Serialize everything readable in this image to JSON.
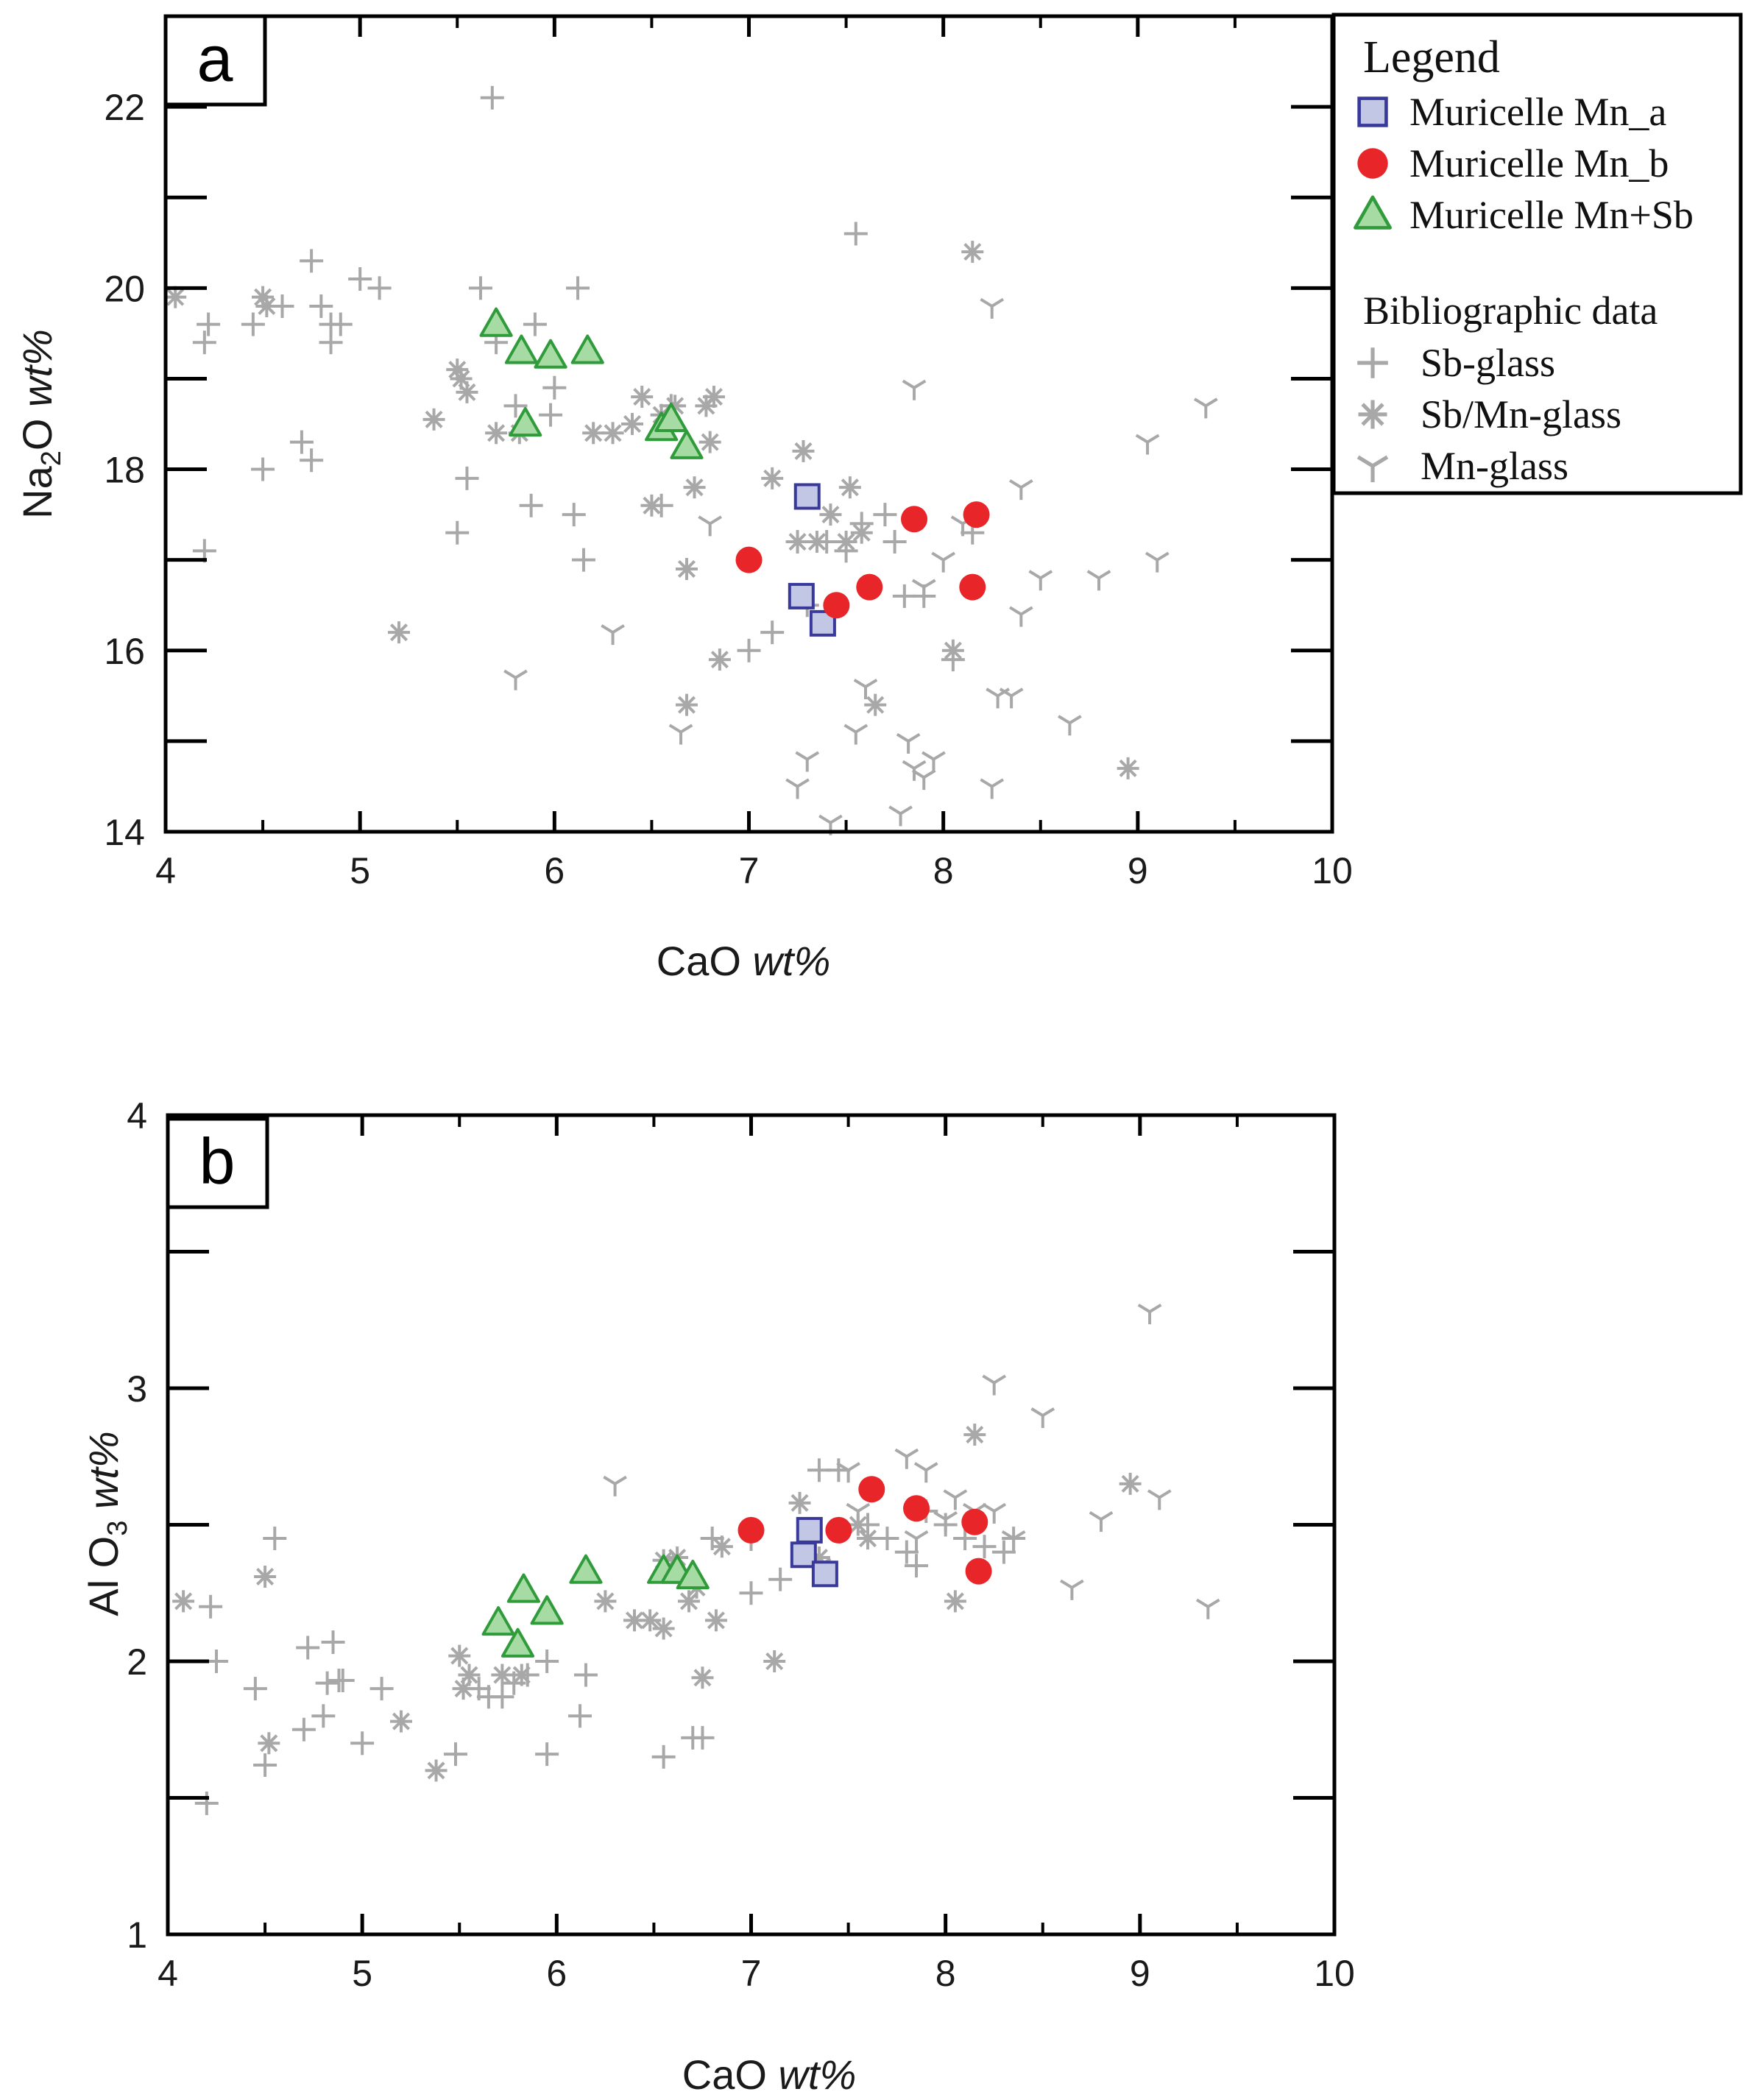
{
  "colors": {
    "mn_a_fill": "#c3c7e6",
    "mn_a_stroke": "#39399b",
    "mn_b_fill": "#e8262a",
    "mn_sb_fill": "#a6dba3",
    "mn_sb_stroke": "#2f9b3a",
    "biblio": "#a8a8a8"
  },
  "legend": {
    "title": "Legend",
    "entries": [
      {
        "key": "mn_a",
        "label": "Muricelle Mn_a",
        "marker": "square"
      },
      {
        "key": "mn_b",
        "label": "Muricelle Mn_b",
        "marker": "circle"
      },
      {
        "key": "mn_sb",
        "label": "Muricelle Mn+Sb",
        "marker": "triangle"
      }
    ],
    "bib_title": "Bibliographic data",
    "bib_entries": [
      {
        "key": "sb",
        "label": "Sb-glass",
        "marker": "plus"
      },
      {
        "key": "sbmn",
        "label": "Sb/Mn-glass",
        "marker": "asterisk"
      },
      {
        "key": "mn",
        "label": "Mn-glass",
        "marker": "y"
      }
    ]
  },
  "chart_data": [
    {
      "type": "scatter",
      "panel": "a",
      "xlabel_main": "CaO ",
      "xlabel_unit": "wt%",
      "ylabel_main": "Na",
      "ylabel_sub": "2",
      "ylabel_rest": "O ",
      "ylabel_unit": "wt%",
      "xlim": [
        4,
        10
      ],
      "ylim": [
        14,
        23
      ],
      "xticks": [
        "4",
        "5",
        "6",
        "7",
        "8",
        "9",
        "10"
      ],
      "xtick_values": [
        4,
        5,
        6,
        7,
        8,
        9,
        10
      ],
      "yticks": [
        "14",
        "16",
        "18",
        "20",
        "22"
      ],
      "ytick_values": [
        14,
        16,
        18,
        20,
        22
      ],
      "y_minor": [
        15,
        17,
        19,
        21
      ],
      "series": [
        {
          "key": "sb",
          "points": [
            [
              4.2,
              17.1
            ],
            [
              4.2,
              19.4
            ],
            [
              4.22,
              19.6
            ],
            [
              4.45,
              19.6
            ],
            [
              4.5,
              18.0
            ],
            [
              4.6,
              19.8
            ],
            [
              4.7,
              18.3
            ],
            [
              4.75,
              18.1
            ],
            [
              4.75,
              20.3
            ],
            [
              4.8,
              19.8
            ],
            [
              4.85,
              19.6
            ],
            [
              4.85,
              19.4
            ],
            [
              4.9,
              19.6
            ],
            [
              5.0,
              20.1
            ],
            [
              5.1,
              20.0
            ],
            [
              5.5,
              17.3
            ],
            [
              5.55,
              17.9
            ],
            [
              5.62,
              20.0
            ],
            [
              5.7,
              19.4
            ],
            [
              5.8,
              18.7
            ],
            [
              5.88,
              17.6
            ],
            [
              5.9,
              19.6
            ],
            [
              5.98,
              18.6
            ],
            [
              6.0,
              18.9
            ],
            [
              6.1,
              17.5
            ],
            [
              6.12,
              20.0
            ],
            [
              6.15,
              17.0
            ],
            [
              6.55,
              17.6
            ],
            [
              6.6,
              18.7
            ],
            [
              7.0,
              16.0
            ],
            [
              7.12,
              16.2
            ],
            [
              7.25,
              17.2
            ],
            [
              7.3,
              16.5
            ],
            [
              7.4,
              17.2
            ],
            [
              7.5,
              17.1
            ],
            [
              7.55,
              20.6
            ],
            [
              7.7,
              17.5
            ],
            [
              7.8,
              16.6
            ],
            [
              7.9,
              16.6
            ],
            [
              7.75,
              17.2
            ],
            [
              7.58,
              17.4
            ],
            [
              8.05,
              15.9
            ],
            [
              8.15,
              17.3
            ],
            [
              5.68,
              22.1
            ]
          ]
        },
        {
          "key": "sbmn",
          "points": [
            [
              4.05,
              19.9
            ],
            [
              4.5,
              19.9
            ],
            [
              4.52,
              19.8
            ],
            [
              5.2,
              16.2
            ],
            [
              5.38,
              18.55
            ],
            [
              5.5,
              19.1
            ],
            [
              5.52,
              19.0
            ],
            [
              5.55,
              18.85
            ],
            [
              5.7,
              18.4
            ],
            [
              5.82,
              18.4
            ],
            [
              6.2,
              18.4
            ],
            [
              6.3,
              18.4
            ],
            [
              6.4,
              18.5
            ],
            [
              6.45,
              18.8
            ],
            [
              6.5,
              17.6
            ],
            [
              6.55,
              18.6
            ],
            [
              6.62,
              18.7
            ],
            [
              6.68,
              16.9
            ],
            [
              6.68,
              15.4
            ],
            [
              6.72,
              17.8
            ],
            [
              6.78,
              18.7
            ],
            [
              6.82,
              18.8
            ],
            [
              6.8,
              18.3
            ],
            [
              6.85,
              15.9
            ],
            [
              7.12,
              17.9
            ],
            [
              7.25,
              17.2
            ],
            [
              7.28,
              18.2
            ],
            [
              7.35,
              17.2
            ],
            [
              7.42,
              17.5
            ],
            [
              7.52,
              17.8
            ],
            [
              7.58,
              17.3
            ],
            [
              7.65,
              15.4
            ],
            [
              8.05,
              16.0
            ],
            [
              8.15,
              20.4
            ],
            [
              8.95,
              14.7
            ],
            [
              7.5,
              17.2
            ]
          ]
        },
        {
          "key": "mn",
          "points": [
            [
              5.8,
              15.7
            ],
            [
              6.3,
              16.2
            ],
            [
              6.65,
              15.1
            ],
            [
              6.8,
              17.4
            ],
            [
              7.25,
              14.5
            ],
            [
              7.3,
              14.8
            ],
            [
              7.42,
              14.1
            ],
            [
              7.55,
              15.1
            ],
            [
              7.6,
              15.6
            ],
            [
              7.78,
              14.2
            ],
            [
              7.82,
              15.0
            ],
            [
              7.85,
              14.7
            ],
            [
              7.9,
              14.6
            ],
            [
              7.95,
              14.8
            ],
            [
              7.85,
              18.9
            ],
            [
              7.9,
              16.7
            ],
            [
              8.0,
              17.0
            ],
            [
              8.25,
              14.5
            ],
            [
              8.28,
              15.5
            ],
            [
              8.35,
              15.5
            ],
            [
              8.4,
              16.4
            ],
            [
              8.4,
              17.8
            ],
            [
              8.5,
              16.8
            ],
            [
              8.65,
              15.2
            ],
            [
              8.8,
              16.8
            ],
            [
              9.05,
              18.3
            ],
            [
              9.1,
              17.0
            ],
            [
              9.35,
              18.7
            ],
            [
              8.25,
              19.8
            ],
            [
              8.1,
              17.4
            ]
          ]
        },
        {
          "key": "mn_a",
          "points": [
            [
              7.3,
              17.7
            ],
            [
              7.27,
              16.6
            ],
            [
              7.38,
              16.3
            ]
          ]
        },
        {
          "key": "mn_b",
          "points": [
            [
              7.0,
              17.0
            ],
            [
              7.45,
              16.5
            ],
            [
              7.62,
              16.7
            ],
            [
              7.85,
              17.45
            ],
            [
              8.15,
              16.7
            ],
            [
              8.17,
              17.5
            ]
          ]
        },
        {
          "key": "mn_sb",
          "points": [
            [
              5.7,
              19.6
            ],
            [
              5.83,
              19.3
            ],
            [
              5.85,
              18.5
            ],
            [
              5.98,
              19.25
            ],
            [
              6.17,
              19.3
            ],
            [
              6.55,
              18.45
            ],
            [
              6.6,
              18.55
            ],
            [
              6.68,
              18.25
            ]
          ]
        }
      ]
    },
    {
      "type": "scatter",
      "panel": "b",
      "xlabel_main": "CaO ",
      "xlabel_unit": "wt%",
      "ylabel_main": "Al O",
      "ylabel_sub": "3",
      "ylabel_rest": " ",
      "ylabel_unit": "wt%",
      "xlim": [
        4,
        10
      ],
      "ylim": [
        1,
        4
      ],
      "xticks": [
        "4",
        "5",
        "6",
        "7",
        "8",
        "9",
        "10"
      ],
      "xtick_values": [
        4,
        5,
        6,
        7,
        8,
        9,
        10
      ],
      "yticks": [
        "1",
        "2",
        "3",
        "4"
      ],
      "ytick_values": [
        1,
        2,
        3,
        4
      ],
      "y_minor": [
        1.5,
        2.5,
        3.5
      ],
      "series": [
        {
          "key": "sb",
          "points": [
            [
              4.2,
              1.48
            ],
            [
              4.22,
              2.2
            ],
            [
              4.25,
              2.0
            ],
            [
              4.45,
              1.9
            ],
            [
              4.5,
              1.62
            ],
            [
              4.55,
              2.45
            ],
            [
              4.7,
              1.75
            ],
            [
              4.72,
              2.05
            ],
            [
              4.8,
              1.8
            ],
            [
              4.82,
              1.92
            ],
            [
              4.85,
              2.07
            ],
            [
              4.88,
              1.93
            ],
            [
              4.9,
              1.93
            ],
            [
              5.0,
              1.7
            ],
            [
              5.1,
              1.9
            ],
            [
              5.48,
              1.66
            ],
            [
              5.6,
              1.9
            ],
            [
              5.65,
              1.87
            ],
            [
              5.72,
              1.87
            ],
            [
              5.78,
              1.92
            ],
            [
              5.85,
              1.95
            ],
            [
              5.95,
              1.66
            ],
            [
              5.95,
              2.0
            ],
            [
              6.12,
              1.8
            ],
            [
              6.15,
              1.95
            ],
            [
              6.55,
              1.65
            ],
            [
              6.6,
              2.35
            ],
            [
              6.7,
              1.72
            ],
            [
              6.75,
              1.72
            ],
            [
              6.8,
              2.45
            ],
            [
              7.0,
              2.25
            ],
            [
              7.15,
              2.3
            ],
            [
              7.3,
              2.45
            ],
            [
              7.35,
              2.7
            ],
            [
              7.45,
              2.7
            ],
            [
              7.6,
              2.5
            ],
            [
              7.7,
              2.45
            ],
            [
              7.8,
              2.4
            ],
            [
              7.85,
              2.35
            ],
            [
              7.9,
              2.55
            ],
            [
              8.0,
              2.5
            ],
            [
              8.1,
              2.45
            ],
            [
              8.2,
              2.42
            ],
            [
              8.3,
              2.4
            ],
            [
              8.35,
              2.45
            ]
          ]
        },
        {
          "key": "sbmn",
          "points": [
            [
              4.08,
              2.22
            ],
            [
              4.5,
              2.31
            ],
            [
              4.52,
              1.7
            ],
            [
              5.2,
              1.78
            ],
            [
              5.38,
              1.6
            ],
            [
              5.5,
              2.02
            ],
            [
              5.52,
              1.9
            ],
            [
              5.55,
              1.95
            ],
            [
              5.72,
              1.95
            ],
            [
              5.82,
              1.95
            ],
            [
              6.25,
              2.22
            ],
            [
              6.4,
              2.15
            ],
            [
              6.48,
              2.15
            ],
            [
              6.55,
              2.12
            ],
            [
              6.55,
              2.37
            ],
            [
              6.62,
              2.38
            ],
            [
              6.68,
              2.22
            ],
            [
              6.72,
              2.27
            ],
            [
              6.75,
              1.94
            ],
            [
              6.82,
              2.15
            ],
            [
              6.85,
              2.42
            ],
            [
              7.12,
              2.0
            ],
            [
              7.25,
              2.58
            ],
            [
              7.35,
              2.38
            ],
            [
              7.55,
              2.5
            ],
            [
              7.6,
              2.45
            ],
            [
              8.05,
              2.22
            ],
            [
              8.15,
              2.83
            ],
            [
              8.95,
              2.65
            ]
          ]
        },
        {
          "key": "mn",
          "points": [
            [
              6.3,
              2.65
            ],
            [
              7.0,
              2.45
            ],
            [
              7.35,
              2.35
            ],
            [
              7.5,
              2.7
            ],
            [
              7.55,
              2.55
            ],
            [
              7.8,
              2.75
            ],
            [
              7.85,
              2.45
            ],
            [
              7.9,
              2.7
            ],
            [
              8.0,
              2.52
            ],
            [
              8.05,
              2.6
            ],
            [
              8.15,
              2.55
            ],
            [
              8.25,
              3.02
            ],
            [
              8.35,
              2.45
            ],
            [
              8.5,
              2.9
            ],
            [
              8.65,
              2.27
            ],
            [
              8.8,
              2.52
            ],
            [
              9.05,
              3.28
            ],
            [
              9.1,
              2.6
            ],
            [
              9.35,
              2.2
            ],
            [
              8.25,
              2.55
            ]
          ]
        },
        {
          "key": "mn_a",
          "points": [
            [
              7.3,
              2.48
            ],
            [
              7.27,
              2.39
            ],
            [
              7.38,
              2.32
            ]
          ]
        },
        {
          "key": "mn_b",
          "points": [
            [
              7.0,
              2.48
            ],
            [
              7.45,
              2.48
            ],
            [
              7.62,
              2.63
            ],
            [
              7.85,
              2.56
            ],
            [
              8.15,
              2.51
            ],
            [
              8.17,
              2.33
            ]
          ]
        },
        {
          "key": "mn_sb",
          "points": [
            [
              5.7,
              2.14
            ],
            [
              5.8,
              2.06
            ],
            [
              5.83,
              2.26
            ],
            [
              5.95,
              2.18
            ],
            [
              6.15,
              2.33
            ],
            [
              6.55,
              2.33
            ],
            [
              6.62,
              2.33
            ],
            [
              6.7,
              2.31
            ]
          ]
        }
      ]
    }
  ]
}
